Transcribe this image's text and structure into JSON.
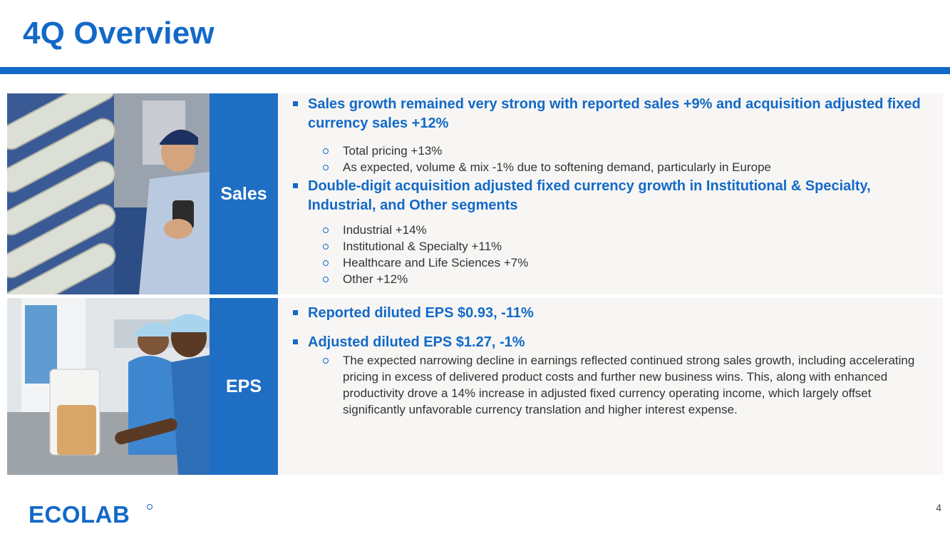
{
  "title": "4Q Overview",
  "logo_text": "ECOLAB",
  "page_number": "4",
  "colors": {
    "brand_blue": "#1369c8",
    "tab_blue": "#1e6fc4",
    "panel_bg": "#f7f6f4",
    "body_text": "#333333"
  },
  "sales": {
    "tab_label": "Sales",
    "bullets": [
      {
        "text": "Sales growth remained very strong with reported sales +9% and acquisition adjusted fixed currency sales +12%",
        "subs": [
          "Total pricing +13%",
          "As expected, volume & mix -1% due to softening demand, particularly in Europe"
        ]
      },
      {
        "text": "Double-digit acquisition adjusted fixed currency growth in Institutional & Specialty, Industrial, and Other segments",
        "subs": [
          "Industrial +14%",
          "Institutional & Specialty +11%",
          "Healthcare and Life Sciences +7%",
          "Other +12%"
        ]
      }
    ]
  },
  "eps": {
    "tab_label": "EPS",
    "bullets": [
      {
        "text": "Reported diluted EPS $0.93, -11%",
        "subs": []
      },
      {
        "text": "Adjusted diluted EPS $1.27, -1%",
        "subs": [
          "The expected narrowing decline in earnings reflected continued strong sales growth, including accelerating pricing in excess of delivered product costs and further new business wins. This, along with enhanced productivity drove a 14% increase in adjusted fixed currency operating income, which largely offset significantly unfavorable currency translation and higher interest expense."
        ]
      }
    ]
  }
}
